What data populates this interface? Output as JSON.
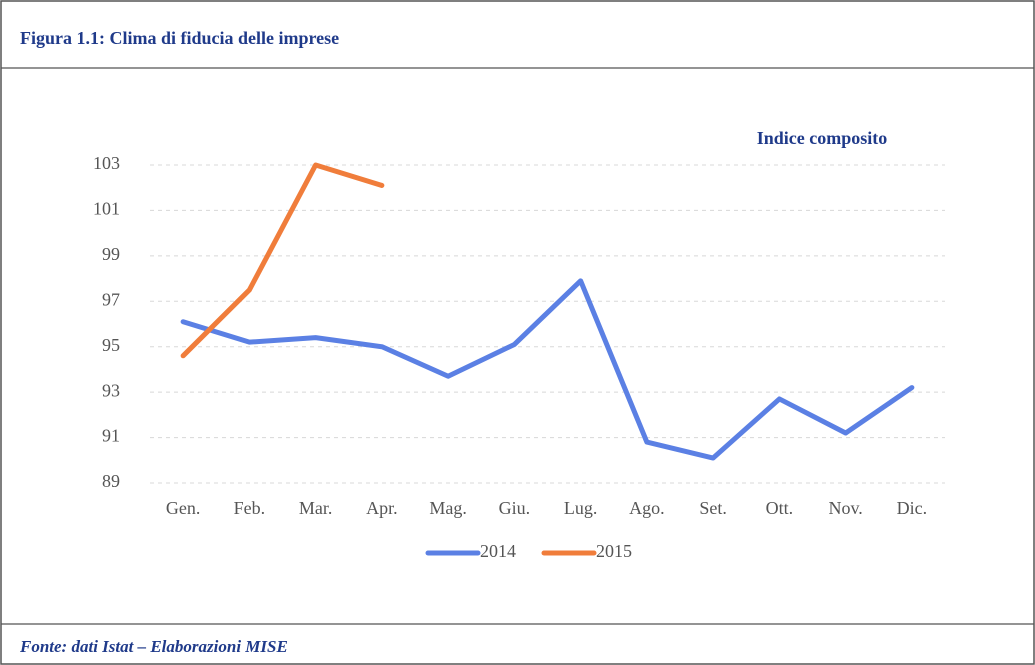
{
  "header": {
    "title": "Figura 1.1: Clima di fiducia delle imprese"
  },
  "footer": {
    "source": "Fonte: dati Istat – Elaborazioni MISE"
  },
  "chart_data": {
    "type": "line",
    "subtitle": "Indice composito",
    "categories": [
      "Gen.",
      "Feb.",
      "Mar.",
      "Apr.",
      "Mag.",
      "Giu.",
      "Lug.",
      "Ago.",
      "Set.",
      "Ott.",
      "Nov.",
      "Dic."
    ],
    "series": [
      {
        "name": "2014",
        "color": "#5b80e4",
        "values": [
          96.1,
          95.2,
          95.4,
          95.0,
          93.7,
          95.1,
          97.9,
          90.8,
          90.1,
          92.7,
          91.2,
          93.2
        ]
      },
      {
        "name": "2015",
        "color": "#f07d3b",
        "values": [
          94.6,
          97.5,
          103.0,
          102.1,
          null,
          null,
          null,
          null,
          null,
          null,
          null,
          null
        ]
      }
    ],
    "ylim": [
      89,
      103
    ],
    "yticks": [
      89,
      91,
      93,
      95,
      97,
      99,
      101,
      103
    ],
    "grid": true
  }
}
